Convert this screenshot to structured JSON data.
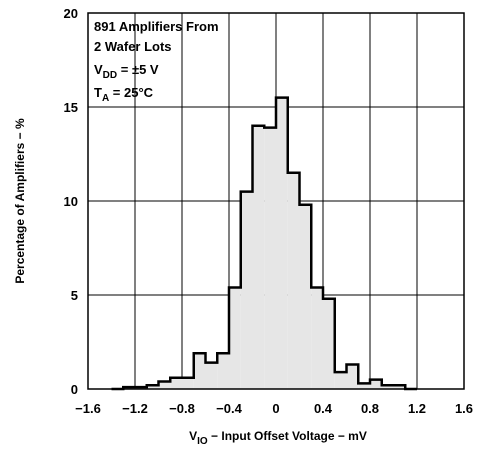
{
  "chart_data": {
    "type": "area",
    "xlim": [
      -1.6,
      1.6
    ],
    "ylim": [
      0,
      20
    ],
    "grid": true,
    "x_ticks": [
      "−1.6",
      "−1.2",
      "−0.8",
      "−0.4",
      "0",
      "0.4",
      "0.8",
      "1.2",
      "1.6"
    ],
    "y_ticks": [
      "0",
      "5",
      "10",
      "15",
      "20"
    ],
    "xlabel": {
      "prefix": "V",
      "sub": "IO",
      "rest": " − Input Offset Voltage − mV"
    },
    "ylabel": "Percentage of Amplifiers − %",
    "bin_width": 0.1,
    "bin_starts": [
      -1.4,
      -1.3,
      -1.2,
      -1.1,
      -1.0,
      -0.9,
      -0.8,
      -0.7,
      -0.6,
      -0.5,
      -0.4,
      -0.3,
      -0.2,
      -0.1,
      0.0,
      0.1,
      0.2,
      0.3,
      0.4,
      0.5,
      0.6,
      0.7,
      0.8,
      0.9,
      1.0,
      1.1
    ],
    "values": [
      0,
      0.1,
      0.1,
      0.2,
      0.4,
      0.6,
      0.6,
      1.9,
      1.4,
      1.9,
      5.4,
      10.5,
      14.0,
      13.9,
      15.5,
      11.5,
      9.8,
      5.4,
      4.8,
      0.9,
      1.3,
      0.3,
      0.5,
      0.2,
      0.2,
      0
    ],
    "annotation": [
      {
        "type": "plain",
        "text": "891 Amplifiers From"
      },
      {
        "type": "plain",
        "text": "2 Wafer Lots"
      },
      {
        "type": "sub",
        "pre": "V",
        "sub": "DD",
        "post": " = ±5 V"
      },
      {
        "type": "sub",
        "pre": "T",
        "sub": "A",
        "post": " = 25°C"
      }
    ],
    "fill_color": "#e6e6e6",
    "line_color": "#000000"
  }
}
